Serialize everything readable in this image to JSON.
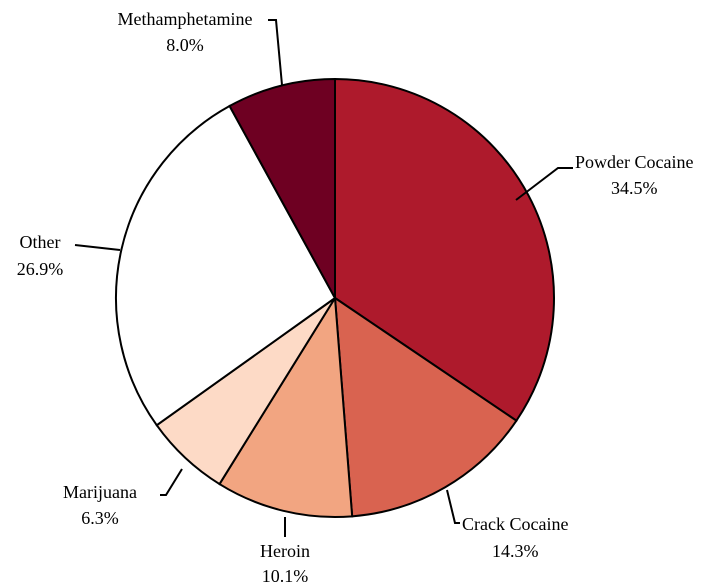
{
  "chart_data": {
    "type": "pie",
    "title": "",
    "start_angle_deg": 0,
    "direction": "clockwise",
    "slices": [
      {
        "name": "Powder Cocaine",
        "value": 34.5,
        "label": "34.5%",
        "color": "#ae1a2c"
      },
      {
        "name": "Crack Cocaine",
        "value": 14.3,
        "label": "14.3%",
        "color": "#d96350"
      },
      {
        "name": "Heroin",
        "value": 10.1,
        "label": "10.1%",
        "color": "#f2a581"
      },
      {
        "name": "Marijuana",
        "value": 6.3,
        "label": "6.3%",
        "color": "#fddac6"
      },
      {
        "name": "Other",
        "value": 26.9,
        "label": "26.9%",
        "color": "#ffffff"
      },
      {
        "name": "Methamphetamine",
        "value": 8.0,
        "label": "8.0%",
        "color": "#6e0022"
      }
    ]
  }
}
